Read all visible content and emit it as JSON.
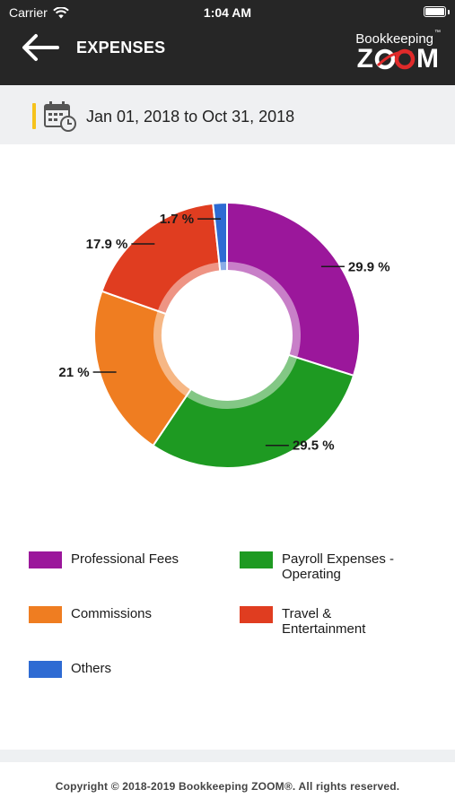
{
  "status_bar": {
    "carrier": "Carrier",
    "time": "1:04 AM"
  },
  "header": {
    "title": "EXPENSES",
    "back_icon": "arrow-left-icon",
    "logo": {
      "top_text": "Bookkeeping",
      "tm": "™",
      "word_z": "Z",
      "word_m": "M"
    }
  },
  "date_range": {
    "icon": "calendar-clock-icon",
    "text": "Jan 01, 2018 to Oct 31, 2018"
  },
  "chart_data": {
    "type": "pie",
    "variant": "donut",
    "start_angle_deg": 0,
    "direction": "clockwise",
    "slices": [
      {
        "name": "Professional Fees",
        "value": 29.9,
        "label": "29.9 %",
        "color": "#9b179b"
      },
      {
        "name": "Payroll Expenses - Operating",
        "value": 29.5,
        "label": "29.5 %",
        "color": "#1e9a22"
      },
      {
        "name": "Commissions",
        "value": 21,
        "label": "21 %",
        "color": "#ef7d21"
      },
      {
        "name": "Travel & Entertainment",
        "value": 17.9,
        "label": "17.9 %",
        "color": "#e03d20"
      },
      {
        "name": "Others",
        "value": 1.7,
        "label": "1.7 %",
        "color": "#2e6bd3"
      }
    ]
  },
  "legend": {
    "items": [
      {
        "label": "Professional Fees",
        "color": "#9b179b"
      },
      {
        "label": "Payroll Expenses - Operating",
        "color": "#1e9a22"
      },
      {
        "label": "Commissions",
        "color": "#ef7d21"
      },
      {
        "label": "Travel & Entertainment",
        "color": "#e03d20"
      },
      {
        "label": "Others",
        "color": "#2e6bd3"
      }
    ]
  },
  "footer": {
    "copyright": "Copyright © 2018-2019 Bookkeeping ZOOM®. All rights reserved."
  }
}
